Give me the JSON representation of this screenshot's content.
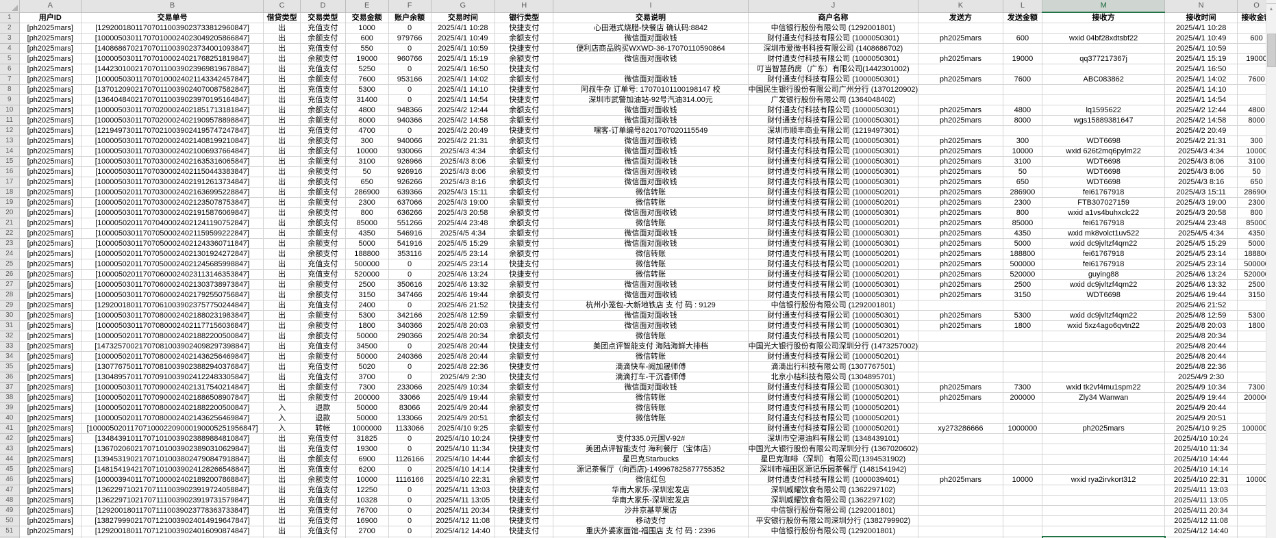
{
  "sheet": {
    "selected_column": "M",
    "selected_cell": "M52",
    "accent_green": "#217346",
    "columns": [
      {
        "letter": "A",
        "title": "用户ID"
      },
      {
        "letter": "B",
        "title": "交易单号"
      },
      {
        "letter": "C",
        "title": "借贷类型"
      },
      {
        "letter": "D",
        "title": "交易类型"
      },
      {
        "letter": "E",
        "title": "交易金额"
      },
      {
        "letter": "F",
        "title": "账户余额"
      },
      {
        "letter": "G",
        "title": "交易时间"
      },
      {
        "letter": "H",
        "title": "银行类型"
      },
      {
        "letter": "I",
        "title": "交易说明"
      },
      {
        "letter": "J",
        "title": "商户名称"
      },
      {
        "letter": "K",
        "title": "发送方"
      },
      {
        "letter": "L",
        "title": "发送金额"
      },
      {
        "letter": "M",
        "title": "接收方"
      },
      {
        "letter": "N",
        "title": "接收时间"
      },
      {
        "letter": "O",
        "title": "接收金额"
      }
    ],
    "rows": [
      [
        "[ph2025mars]",
        "[129200180117070110039023733812960847]",
        "出",
        "充值支付",
        "1000",
        "0",
        "2025/4/1 10:28",
        "快捷支付",
        "心田港式烧腊-快餐店 确认码:8842",
        "中信银行股份有限公司 (1292001801)",
        "",
        "",
        "",
        "2025/4/1 10:28",
        ""
      ],
      [
        "[ph2025mars]",
        "[100005030117070100024023049205866847]",
        "出",
        "余额支付",
        "600",
        "979766",
        "2025/4/1 10:49",
        "余额支付",
        "微信面对面收钱",
        "财付通支付科技有限公司 (1000050301)",
        "ph2025mars",
        "600",
        "wxid 04bf28xdtsbf22",
        "2025/4/1 10:49",
        "600"
      ],
      [
        "[ph2025mars]",
        "[140868670217070110039023734001093847]",
        "出",
        "充值支付",
        "550",
        "0",
        "2025/4/1 10:59",
        "快捷支付",
        "便利店商品购买WXWD-36-17070110590864",
        "深圳市爱微书科技有限公司 (1408686702)",
        "",
        "",
        "",
        "2025/4/1 10:59",
        ""
      ],
      [
        "[ph2025mars]",
        "[100005030117070100024021768251819847]",
        "出",
        "余额支付",
        "19000",
        "960766",
        "2025/4/1 15:19",
        "余额支付",
        "微信面对面收钱",
        "财付通支付科技有限公司 (1000050301)",
        "ph2025mars",
        "19000",
        "qq377217367j",
        "2025/4/1 15:19",
        "19000"
      ],
      [
        "[ph2025mars]",
        "[144230100217070110039023969819678847]",
        "出",
        "充值支付",
        "5250",
        "0",
        "2025/4/1 16:50",
        "快捷支付",
        "",
        "叮当智慧药房（广东）有限公司(1442301002)",
        "",
        "",
        "",
        "2025/4/1 16:50",
        ""
      ],
      [
        "[ph2025mars]",
        "[100005030117070100024021143342457847]",
        "出",
        "余额支付",
        "7600",
        "953166",
        "2025/4/1 14:02",
        "余额支付",
        "微信面对面收钱",
        "财付通支付科技有限公司 (1000050301)",
        "ph2025mars",
        "7600",
        "ABC083862",
        "2025/4/1 14:02",
        "7600"
      ],
      [
        "[ph2025mars]",
        "[137012090217070110039024070087582847]",
        "出",
        "充值支付",
        "5300",
        "0",
        "2025/4/1 14:10",
        "快捷支付",
        "阿叔牛杂 订单号: 17070101100198147 校",
        "中国民生银行股份有限公司广州分行 (1370120902)",
        "",
        "",
        "",
        "2025/4/1 14:10",
        ""
      ],
      [
        "[ph2025mars]",
        "[136404840217070110039023970195164847]",
        "出",
        "充值支付",
        "31400",
        "0",
        "2025/4/1 14:54",
        "快捷支付",
        "深圳市武警加油站-92号汽油314.00元",
        "广发银行股份有限公司 (1364048402)",
        "",
        "",
        "",
        "2025/4/1 14:54",
        ""
      ],
      [
        "[ph2025mars]",
        "[100005030117070200024021851713181847]",
        "出",
        "余额支付",
        "4800",
        "948366",
        "2025/4/2 12:44",
        "余额支付",
        "微信面对面收钱",
        "财付通支付科技有限公司 (1000050301)",
        "ph2025mars",
        "4800",
        "lq1595622",
        "2025/4/2 12:44",
        "4800"
      ],
      [
        "[ph2025mars]",
        "[100005030117070200024021909578898847]",
        "出",
        "余额支付",
        "8000",
        "940366",
        "2025/4/2 14:58",
        "余额支付",
        "微信面对面收钱",
        "财付通支付科技有限公司 (1000050301)",
        "ph2025mars",
        "8000",
        "wgs15889381647",
        "2025/4/2 14:58",
        "8000"
      ],
      [
        "[ph2025mars]",
        "[121949730117070210039024195747247847]",
        "出",
        "充值支付",
        "4700",
        "0",
        "2025/4/2 20:49",
        "快捷支付",
        "嘿客-订单编号8201707020115549",
        "深圳市顺丰商业有限公司 (1219497301)",
        "",
        "",
        "",
        "2025/4/2 20:49",
        ""
      ],
      [
        "[ph2025mars]",
        "[100005030117070200024021408199210847]",
        "出",
        "余额支付",
        "300",
        "940066",
        "2025/4/2 21:31",
        "余额支付",
        "微信面对面收钱",
        "财付通支付科技有限公司 (1000050301)",
        "ph2025mars",
        "300",
        "WDT6698",
        "2025/4/2 21:31",
        "300"
      ],
      [
        "[ph2025mars]",
        "[100005030117070300024021006937664847]",
        "出",
        "余额支付",
        "10000",
        "930066",
        "2025/4/3 4:34",
        "余额支付",
        "微信面对面收钱",
        "财付通支付科技有限公司 (1000050301)",
        "ph2025mars",
        "10000",
        "wxid 626t2mq6pylm22",
        "2025/4/3 4:34",
        "10000"
      ],
      [
        "[ph2025mars]",
        "[100005030117070300024021635316065847]",
        "出",
        "余额支付",
        "3100",
        "926966",
        "2025/4/3 8:06",
        "余额支付",
        "微信面对面收钱",
        "财付通支付科技有限公司 (1000050301)",
        "ph2025mars",
        "3100",
        "WDT6698",
        "2025/4/3 8:06",
        "3100"
      ],
      [
        "[ph2025mars]",
        "[100005030117070300024021150443383847]",
        "出",
        "余额支付",
        "50",
        "926916",
        "2025/4/3 8:06",
        "余额支付",
        "微信面对面收钱",
        "财付通支付科技有限公司 (1000050301)",
        "ph2025mars",
        "50",
        "WDT6698",
        "2025/4/3 8:06",
        "50"
      ],
      [
        "[ph2025mars]",
        "[100005030117070300024021912613734847]",
        "出",
        "余额支付",
        "650",
        "926266",
        "2025/4/3 8:16",
        "余额支付",
        "微信面对面收钱",
        "财付通支付科技有限公司 (1000050301)",
        "ph2025mars",
        "650",
        "WDT6698",
        "2025/4/3 8:16",
        "650"
      ],
      [
        "[ph2025mars]",
        "[100005020117070300024021636995228847]",
        "出",
        "余额支付",
        "286900",
        "639366",
        "2025/4/3 15:11",
        "余额支付",
        "微信转账",
        "财付通支付科技有限公司 (1000050201)",
        "ph2025mars",
        "286900",
        "fei61767918",
        "2025/4/3 15:11",
        "286900"
      ],
      [
        "[ph2025mars]",
        "[100005020117070300024021235078753847]",
        "出",
        "余额支付",
        "2300",
        "637066",
        "2025/4/3 19:00",
        "余额支付",
        "微信转账",
        "财付通支付科技有限公司 (1000050201)",
        "ph2025mars",
        "2300",
        "FTB307027159",
        "2025/4/3 19:00",
        "2300"
      ],
      [
        "[ph2025mars]",
        "[100005030117070300024021915876069847]",
        "出",
        "余额支付",
        "800",
        "636266",
        "2025/4/3 20:58",
        "余额支付",
        "微信面对面收钱",
        "财付通支付科技有限公司 (1000050301)",
        "ph2025mars",
        "800",
        "wxid a1vs4buhxclc22",
        "2025/4/3 20:58",
        "800"
      ],
      [
        "[ph2025mars]",
        "[100005020117070400024021241190752847]",
        "出",
        "余额支付",
        "85000",
        "551266",
        "2025/4/4 23:48",
        "余额支付",
        "微信转账",
        "财付通支付科技有限公司 (1000050201)",
        "ph2025mars",
        "85000",
        "fei61767918",
        "2025/4/4 23:48",
        "85000"
      ],
      [
        "[ph2025mars]",
        "[100005030117070500024021159599222847]",
        "出",
        "余额支付",
        "4350",
        "546916",
        "2025/4/5 4:34",
        "余额支付",
        "微信面对面收钱",
        "财付通支付科技有限公司 (1000050301)",
        "ph2025mars",
        "4350",
        "wxid mk8volct1uv522",
        "2025/4/5 4:34",
        "4350"
      ],
      [
        "[ph2025mars]",
        "[100005030117070500024021243360711847]",
        "出",
        "余额支付",
        "5000",
        "541916",
        "2025/4/5 15:29",
        "余额支付",
        "微信面对面收钱",
        "财付通支付科技有限公司 (1000050301)",
        "ph2025mars",
        "5000",
        "wxid dc9jvltzf4qm22",
        "2025/4/5 15:29",
        "5000"
      ],
      [
        "[ph2025mars]",
        "[100005020117070500024021301924272847]",
        "出",
        "余额支付",
        "188800",
        "353116",
        "2025/4/5 23:14",
        "余额支付",
        "微信转账",
        "财付通支付科技有限公司 (1000050201)",
        "ph2025mars",
        "188800",
        "fei61767918",
        "2025/4/5 23:14",
        "188800"
      ],
      [
        "[ph2025mars]",
        "[100005020117070500024021245685998847]",
        "出",
        "充值支付",
        "500000",
        "0",
        "2025/4/5 23:14",
        "快捷支付",
        "微信转账",
        "财付通支付科技有限公司 (1000050201)",
        "ph2025mars",
        "500000",
        "fei61767918",
        "2025/4/5 23:14",
        "500000"
      ],
      [
        "[ph2025mars]",
        "[100005020117070600024023113146353847]",
        "出",
        "充值支付",
        "520000",
        "0",
        "2025/4/6 13:24",
        "快捷支付",
        "微信转账",
        "财付通支付科技有限公司 (1000050201)",
        "ph2025mars",
        "520000",
        "guying88",
        "2025/4/6 13:24",
        "520000"
      ],
      [
        "[ph2025mars]",
        "[100005030117070600024021303738973847]",
        "出",
        "余额支付",
        "2500",
        "350616",
        "2025/4/6 13:32",
        "余额支付",
        "微信面对面收钱",
        "财付通支付科技有限公司 (1000050301)",
        "ph2025mars",
        "2500",
        "wxid dc9jvltzf4qm22",
        "2025/4/6 13:32",
        "2500"
      ],
      [
        "[ph2025mars]",
        "[100005030117070600024021792550756847]",
        "出",
        "余额支付",
        "3150",
        "347466",
        "2025/4/6 19:44",
        "余额支付",
        "微信面对面收钱",
        "财付通支付科技有限公司 (1000050301)",
        "ph2025mars",
        "3150",
        "WDT6698",
        "2025/4/6 19:44",
        "3150"
      ],
      [
        "[ph2025mars]",
        "[129200180117070610039023757750244847]",
        "出",
        "充值支付",
        "2400",
        "0",
        "2025/4/6 21:52",
        "快捷支付",
        "杭州小笼包-大新地铁店 支 付 码 : 9129",
        "中信银行股份有限公司 (1292001801)",
        "",
        "",
        "",
        "2025/4/6 21:52",
        ""
      ],
      [
        "[ph2025mars]",
        "[100005030117070800024021880231983847]",
        "出",
        "余额支付",
        "5300",
        "342166",
        "2025/4/8 12:59",
        "余额支付",
        "微信面对面收钱",
        "财付通支付科技有限公司 (1000050301)",
        "ph2025mars",
        "5300",
        "wxid dc9jvltzf4qm22",
        "2025/4/8 12:59",
        "5300"
      ],
      [
        "[ph2025mars]",
        "[100005030117070800024021177156036847]",
        "出",
        "余额支付",
        "1800",
        "340366",
        "2025/4/8 20:03",
        "余额支付",
        "微信面对面收钱",
        "财付通支付科技有限公司 (1000050301)",
        "ph2025mars",
        "1800",
        "wxid 5xz4ago6qvtn22",
        "2025/4/8 20:03",
        "1800"
      ],
      [
        "[ph2025mars]",
        "[100005020117070800024021882200500847]",
        "出",
        "余额支付",
        "50000",
        "290366",
        "2025/4/8 20:34",
        "余额支付",
        "微信转账",
        "财付通支付科技有限公司 (1000050201)",
        "",
        "",
        "",
        "2025/4/8 20:34",
        ""
      ],
      [
        "[ph2025mars]",
        "[147325700217070810039024098297398847]",
        "出",
        "充值支付",
        "34500",
        "0",
        "2025/4/8 20:44",
        "快捷支付",
        "美团点评智能支付 海陆海鲜大排档",
        "中国光大银行股份有限公司深圳分行 (1473257002)",
        "",
        "",
        "",
        "2025/4/8 20:44",
        ""
      ],
      [
        "[ph2025mars]",
        "[100005020117070800024021436256469847]",
        "出",
        "余额支付",
        "50000",
        "240366",
        "2025/4/8 20:44",
        "余额支付",
        "微信转账",
        "财付通支付科技有限公司 (1000050201)",
        "",
        "",
        "",
        "2025/4/8 20:44",
        ""
      ],
      [
        "[ph2025mars]",
        "[130776750117070810039023882940376847]",
        "出",
        "充值支付",
        "5020",
        "0",
        "2025/4/8 22:36",
        "快捷支付",
        "滴滴快车-阙加晟师傅",
        "滴滴出行科技有限公司 (1307767501)",
        "",
        "",
        "",
        "2025/4/8 22:36",
        ""
      ],
      [
        "[ph2025mars]",
        "[130489570117070910039024122483305847]",
        "出",
        "充值支付",
        "3700",
        "0",
        "2025/4/9 2:30",
        "快捷支付",
        "滴滴打车-干沉香师傅",
        "北京小桔科技有限公司 (1304895701)",
        "",
        "",
        "",
        "2025/4/9 2:30",
        ""
      ],
      [
        "[ph2025mars]",
        "[100005030117070900024021317540214847]",
        "出",
        "余额支付",
        "7300",
        "233066",
        "2025/4/9 10:34",
        "余额支付",
        "微信面对面收钱",
        "财付通支付科技有限公司 (1000050301)",
        "ph2025mars",
        "7300",
        "wxid tk2vf4mu1spm22",
        "2025/4/9 10:34",
        "7300"
      ],
      [
        "[ph2025mars]",
        "[100005020117070900024021886508907847]",
        "出",
        "余额支付",
        "200000",
        "33066",
        "2025/4/9 19:44",
        "余额支付",
        "微信转账",
        "财付通支付科技有限公司 (1000050201)",
        "ph2025mars",
        "200000",
        "Zly34 Wanwan",
        "2025/4/9 19:44",
        "200000"
      ],
      [
        "[ph2025mars]",
        "[100005020117070800024021882200500847]",
        "入",
        "退款",
        "50000",
        "83066",
        "2025/4/9 20:44",
        "余额支付",
        "微信转账",
        "财付通支付科技有限公司 (1000050201)",
        "",
        "",
        "",
        "2025/4/9 20:44",
        ""
      ],
      [
        "[ph2025mars]",
        "[100005020117070800024021436256469847]",
        "入",
        "退款",
        "50000",
        "133066",
        "2025/4/9 20:51",
        "余额支付",
        "微信转账",
        "财付通支付科技有限公司 (1000050201)",
        "",
        "",
        "",
        "2025/4/9 20:51",
        ""
      ],
      [
        "[ph2025mars]",
        "[1000050201170710002209000190005251956847]",
        "入",
        "转帐",
        "1000000",
        "1133066",
        "2025/4/10 9:25",
        "余额支付",
        "",
        "财付通支付科技有限公司 (1000050201)",
        "xy273286666",
        "1000000",
        "ph2025mars",
        "2025/4/10 9:25",
        "1000000"
      ],
      [
        "[ph2025mars]",
        "[134843910117071010039023889884810847]",
        "出",
        "充值支付",
        "31825",
        "0",
        "2025/4/10 10:24",
        "快捷支付",
        "支付335.0元国V-92#",
        "深圳市空港油料有限公司 (1348439101)",
        "",
        "",
        "",
        "2025/4/10 10:24",
        ""
      ],
      [
        "[ph2025mars]",
        "[136702060217071010039023890310629847]",
        "出",
        "充值支付",
        "19300",
        "0",
        "2025/4/10 11:34",
        "快捷支付",
        "美团点评智能支付 海利餐厅（宝体店）",
        "中国光大银行股份有限公司深圳分行 (1367020602)",
        "",
        "",
        "",
        "2025/4/10 11:34",
        ""
      ],
      [
        "[ph2025mars]",
        "[139453190217071010038024790847918847]",
        "出",
        "余额支付",
        "6900",
        "1126166",
        "2025/4/10 14:44",
        "余额支付",
        "星巴克Starbucks",
        "星巴克咖啡（深圳）有限公司(1394531902)",
        "",
        "",
        "",
        "2025/4/10 14:44",
        ""
      ],
      [
        "[ph2025mars]",
        "[148154194217071010039024128266548847]",
        "出",
        "充值支付",
        "6200",
        "0",
        "2025/4/10 14:14",
        "快捷支付",
        "源记茶餐厅（向西店)-149967825877755352",
        "深圳市福田区源记乐园茶餐厅 (1481541942)",
        "",
        "",
        "",
        "2025/4/10 14:14",
        ""
      ],
      [
        "[ph2025mars]",
        "[100003940117071000024021892007868847]",
        "出",
        "余额支付",
        "10000",
        "1116166",
        "2025/4/10 22:31",
        "余额支付",
        "微信红包",
        "财付通支付科技有限公司 (1000039401)",
        "ph2025mars",
        "10000",
        "wxid rya2irvkort312",
        "2025/4/10 22:31",
        "10000"
      ],
      [
        "[ph2025mars]",
        "[136229710217071110039023919724058847]",
        "出",
        "充值支付",
        "12250",
        "0",
        "2025/4/11 13:03",
        "快捷支付",
        "华南大家乐-深圳宏发店",
        "深圳威耀饮食有限公司 (1362297102)",
        "",
        "",
        "",
        "2025/4/11 13:03",
        ""
      ],
      [
        "[ph2025mars]",
        "[136229710217071110039023919731579847]",
        "出",
        "充值支付",
        "10328",
        "0",
        "2025/4/11 13:05",
        "快捷支付",
        "华南大家乐-深圳宏发店",
        "深圳威耀饮食有限公司 (1362297102)",
        "",
        "",
        "",
        "2025/4/11 13:05",
        ""
      ],
      [
        "[ph2025mars]",
        "[129200180117071110039023778363733847]",
        "出",
        "充值支付",
        "76700",
        "0",
        "2025/4/11 20:34",
        "快捷支付",
        "沙井京基苹果店",
        "中信银行股份有限公司 (1292001801)",
        "",
        "",
        "",
        "2025/4/11 20:34",
        ""
      ],
      [
        "[ph2025mars]",
        "[138279990217071210039024014919647847]",
        "出",
        "充值支付",
        "16900",
        "0",
        "2025/4/12 11:08",
        "快捷支付",
        "移动支付",
        "平安银行股份有限公司深圳分行 (1382799902)",
        "",
        "",
        "",
        "2025/4/12 11:08",
        ""
      ],
      [
        "[ph2025mars]",
        "[129200180117071210039024016090874847]",
        "出",
        "充值支付",
        "2700",
        "0",
        "2025/4/12 14:40",
        "快捷支付",
        "重庆外婆家面馆-福围店 支 付 码 : 2396",
        "中信银行股份有限公司 (1292001801)",
        "",
        "",
        "",
        "2025/4/12 14:40",
        ""
      ]
    ],
    "scrollbar": {
      "up_arrow": "▲"
    }
  }
}
